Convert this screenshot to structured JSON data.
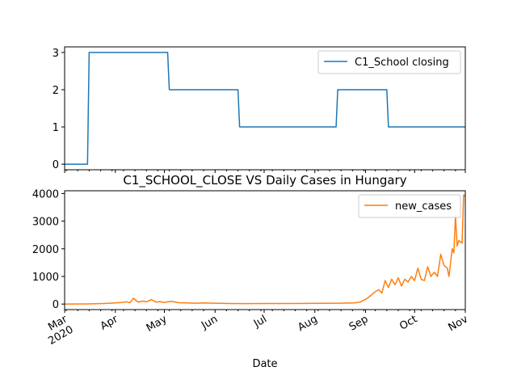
{
  "chart_data": [
    {
      "type": "line",
      "title": "",
      "xlabel": "",
      "ylabel": "",
      "ylim": [
        -0.15,
        3.15
      ],
      "yticks": [
        0,
        1,
        2,
        3
      ],
      "grid": false,
      "legend": {
        "placement": "upper right",
        "entries": [
          "C1_School closing"
        ]
      },
      "series": [
        {
          "name": "C1_School closing",
          "color": "#1f77b4",
          "x": [
            "2020-03-01",
            "2020-03-15",
            "2020-03-16",
            "2020-05-03",
            "2020-05-04",
            "2020-06-15",
            "2020-06-16",
            "2020-08-14",
            "2020-08-15",
            "2020-09-14",
            "2020-09-15",
            "2020-11-01"
          ],
          "y": [
            0,
            0,
            3,
            3,
            2,
            2,
            1,
            1,
            2,
            2,
            1,
            1
          ]
        }
      ]
    },
    {
      "type": "line",
      "title": "C1_SCHOOL_CLOSE VS Daily Cases in Hungary",
      "xlabel": "Date",
      "ylabel": "",
      "ylim": [
        -200,
        4100
      ],
      "yticks": [
        0,
        1000,
        2000,
        3000,
        4000
      ],
      "grid": false,
      "legend": {
        "placement": "upper right",
        "entries": [
          "new_cases"
        ]
      },
      "x_tick_labels": [
        "Mar\n2020",
        "Apr",
        "May",
        "Jun",
        "Jul",
        "Aug",
        "Sep",
        "Oct",
        "Nov"
      ],
      "series": [
        {
          "name": "new_cases",
          "color": "#ff7f0e",
          "x": [
            "2020-03-01",
            "2020-03-15",
            "2020-03-25",
            "2020-04-01",
            "2020-04-05",
            "2020-04-08",
            "2020-04-10",
            "2020-04-12",
            "2020-04-15",
            "2020-04-18",
            "2020-04-20",
            "2020-04-23",
            "2020-04-26",
            "2020-04-28",
            "2020-05-01",
            "2020-05-05",
            "2020-05-10",
            "2020-05-15",
            "2020-05-20",
            "2020-05-25",
            "2020-06-01",
            "2020-06-10",
            "2020-06-20",
            "2020-07-01",
            "2020-07-15",
            "2020-08-01",
            "2020-08-15",
            "2020-08-25",
            "2020-08-29",
            "2020-09-01",
            "2020-09-03",
            "2020-09-05",
            "2020-09-07",
            "2020-09-09",
            "2020-09-11",
            "2020-09-13",
            "2020-09-15",
            "2020-09-17",
            "2020-09-19",
            "2020-09-21",
            "2020-09-23",
            "2020-09-25",
            "2020-09-27",
            "2020-09-29",
            "2020-10-01",
            "2020-10-03",
            "2020-10-05",
            "2020-10-07",
            "2020-10-09",
            "2020-10-11",
            "2020-10-13",
            "2020-10-15",
            "2020-10-17",
            "2020-10-19",
            "2020-10-21",
            "2020-10-22",
            "2020-10-24",
            "2020-10-25",
            "2020-10-26",
            "2020-10-27",
            "2020-10-28",
            "2020-10-29",
            "2020-10-30",
            "2020-10-31",
            "2020-11-01"
          ],
          "y": [
            0,
            5,
            20,
            40,
            60,
            80,
            50,
            210,
            70,
            110,
            80,
            160,
            70,
            90,
            60,
            100,
            50,
            40,
            30,
            40,
            30,
            20,
            15,
            20,
            20,
            25,
            30,
            40,
            80,
            170,
            250,
            350,
            450,
            520,
            400,
            850,
            600,
            900,
            700,
            950,
            650,
            900,
            800,
            1000,
            850,
            1300,
            900,
            850,
            1350,
            1000,
            1150,
            1000,
            1800,
            1400,
            1300,
            1000,
            2000,
            1850,
            3200,
            2100,
            2300,
            2250,
            2200,
            3950,
            3900
          ]
        }
      ]
    }
  ]
}
